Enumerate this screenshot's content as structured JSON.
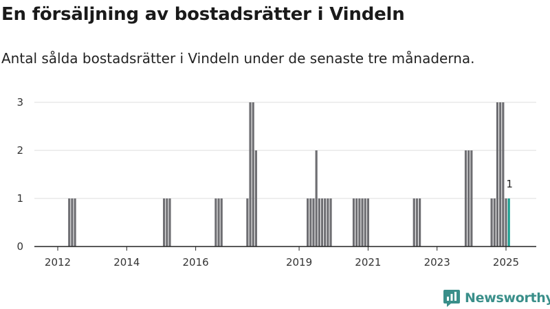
{
  "title": "En försäljning av bostadsrätter i Vindeln",
  "subtitle": "Antal sålda bostadsrätter i Vindeln under de senaste tre månaderna.",
  "brand": {
    "name": "Newsworthy",
    "icon": "newsworthy-chart-icon",
    "color": "#3a8f8a"
  },
  "colors": {
    "bar": "#6e6e72",
    "highlight": "#1a9e8f",
    "grid": "#dcdcdc",
    "axis": "#222222"
  },
  "chart_data": {
    "type": "bar",
    "x_unit": "month",
    "x_ticks": [
      "2012",
      "2014",
      "2016",
      "2019",
      "2021",
      "2023",
      "2025"
    ],
    "ylim": [
      0,
      3
    ],
    "y_ticks": [
      0,
      1,
      2,
      3
    ],
    "grid": true,
    "legend": "none",
    "series": [
      {
        "x": [
          "2012-05",
          "2012-06",
          "2012-07",
          "2015-02",
          "2015-03",
          "2015-04",
          "2016-08",
          "2016-09",
          "2016-10",
          "2017-07",
          "2017-08",
          "2017-09",
          "2017-10",
          "2019-04",
          "2019-05",
          "2019-06",
          "2019-07",
          "2019-08",
          "2019-09",
          "2019-10",
          "2019-11",
          "2019-12",
          "2020-08",
          "2020-09",
          "2020-10",
          "2020-11",
          "2020-12",
          "2021-01",
          "2022-05",
          "2022-06",
          "2022-07",
          "2023-11",
          "2023-12",
          "2024-01",
          "2024-08",
          "2024-09",
          "2024-10",
          "2024-11",
          "2024-12",
          "2025-01",
          "2025-02"
        ],
        "values": [
          1,
          1,
          1,
          1,
          1,
          1,
          1,
          1,
          1,
          1,
          3,
          3,
          2,
          1,
          1,
          1,
          2,
          1,
          1,
          1,
          1,
          1,
          1,
          1,
          1,
          1,
          1,
          1,
          1,
          1,
          1,
          2,
          2,
          2,
          1,
          1,
          3,
          3,
          3,
          1,
          1
        ],
        "highlight_last": true
      }
    ],
    "annotations": [
      {
        "x": "2025-02",
        "text": "1"
      }
    ]
  }
}
